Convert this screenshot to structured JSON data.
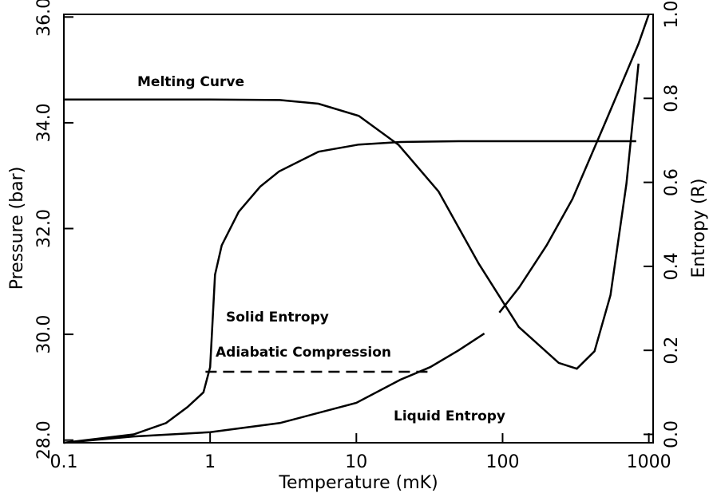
{
  "chart_data": {
    "type": "line",
    "xlabel": "Temperature (mK)",
    "ylabel": "Pressure (bar)",
    "y2label": "Entropy (R)",
    "xscale": "log",
    "xlim": [
      0.1,
      1070
    ],
    "xticks": [
      0.1,
      1,
      10,
      100,
      1000
    ],
    "ylim": [
      27.95,
      36.05
    ],
    "yticks": [
      {
        "value": 28,
        "label": "28.0"
      },
      {
        "value": 30,
        "label": "30.0"
      },
      {
        "value": 32,
        "label": "32.0"
      },
      {
        "value": 34,
        "label": "34.0"
      },
      {
        "value": 36,
        "label": "36.0"
      }
    ],
    "y2lim": [
      -0.02,
      1.0
    ],
    "y2ticks": [
      {
        "value": 0,
        "label": "0.0"
      },
      {
        "value": 0.2,
        "label": "0.2"
      },
      {
        "value": 0.4,
        "label": "0.4"
      },
      {
        "value": 0.6,
        "label": "0.6"
      },
      {
        "value": 0.8,
        "label": "0.8"
      },
      {
        "value": 1,
        "label": "1.0"
      }
    ],
    "series": [
      {
        "name": "Melting Curve",
        "color": "#000000",
        "style": "solid",
        "x": [
          0.1,
          1,
          3,
          5.5,
          10.4,
          19.5,
          36.5,
          68.6,
          129,
          242,
          322,
          425,
          547,
          703,
          850
        ],
        "values": [
          34.44,
          34.44,
          34.43,
          34.36,
          34.13,
          33.58,
          32.7,
          31.34,
          30.14,
          29.46,
          29.35,
          29.68,
          30.74,
          32.85,
          35.12
        ]
      },
      {
        "name": "Solid Entropy",
        "color": "#000000",
        "style": "solid",
        "axis": "y2",
        "x": [
          0.1,
          0.3,
          0.5,
          0.7,
          0.9,
          1.0,
          1.08,
          1.2,
          1.57,
          2.2,
          2.96,
          5.5,
          10.4,
          20,
          50,
          200,
          820
        ],
        "values": [
          -0.02,
          0.0,
          0.027,
          0.065,
          0.1,
          0.16,
          0.38,
          0.45,
          0.53,
          0.59,
          0.626,
          0.673,
          0.69,
          0.696,
          0.698,
          0.698,
          0.698
        ]
      },
      {
        "name": "Adiabatic Compression",
        "color": "#000000",
        "style": "dashed",
        "axis": "y2",
        "x": [
          0.93,
          33
        ],
        "values": [
          0.149,
          0.149
        ]
      },
      {
        "name": "Liquid Entropy",
        "color": "#000000",
        "style": "solid",
        "axis": "y2",
        "x": [
          0.1,
          0.3,
          1,
          3,
          10,
          20,
          32,
          50,
          75,
          85,
          95,
          130,
          200,
          300,
          500,
          700,
          850,
          1000
        ],
        "values": [
          -0.02,
          -0.005,
          0.005,
          0.027,
          0.075,
          0.13,
          0.16,
          0.2,
          0.24,
          null,
          0.29,
          0.35,
          0.45,
          0.56,
          0.74,
          0.86,
          0.93,
          1.0
        ]
      }
    ]
  }
}
